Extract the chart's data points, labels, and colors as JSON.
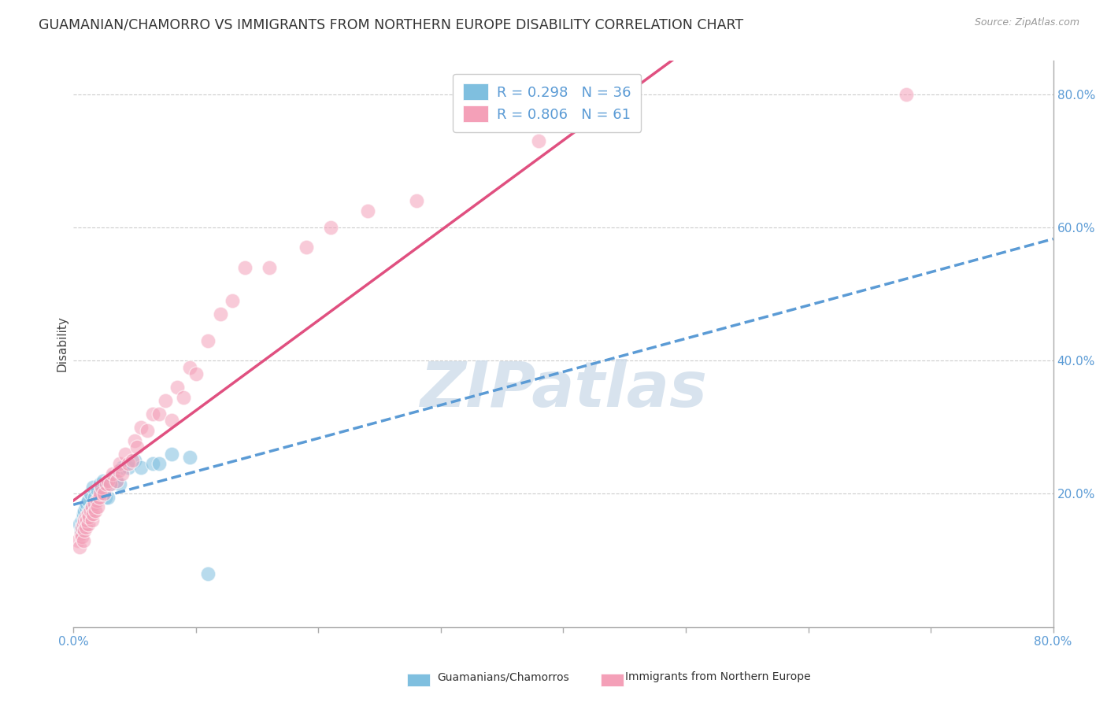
{
  "title": "GUAMANIAN/CHAMORRO VS IMMIGRANTS FROM NORTHERN EUROPE DISABILITY CORRELATION CHART",
  "source": "Source: ZipAtlas.com",
  "ylabel": "Disability",
  "ylabel_right_ticks": [
    "80.0%",
    "60.0%",
    "40.0%",
    "20.0%"
  ],
  "ylabel_right_values": [
    0.8,
    0.6,
    0.4,
    0.2
  ],
  "xlim": [
    0.0,
    0.8
  ],
  "ylim": [
    0.0,
    0.85
  ],
  "series1": {
    "label": "Guamanians/Chamorros",
    "color": "#7fbfdf",
    "R": 0.298,
    "N": 36,
    "x": [
      0.005,
      0.006,
      0.007,
      0.008,
      0.008,
      0.009,
      0.01,
      0.01,
      0.011,
      0.012,
      0.012,
      0.013,
      0.014,
      0.015,
      0.016,
      0.017,
      0.018,
      0.02,
      0.022,
      0.024,
      0.025,
      0.026,
      0.028,
      0.03,
      0.032,
      0.035,
      0.038,
      0.04,
      0.045,
      0.05,
      0.055,
      0.065,
      0.07,
      0.08,
      0.095,
      0.11
    ],
    "y": [
      0.155,
      0.145,
      0.16,
      0.165,
      0.17,
      0.175,
      0.155,
      0.18,
      0.185,
      0.165,
      0.19,
      0.175,
      0.2,
      0.18,
      0.21,
      0.195,
      0.185,
      0.205,
      0.215,
      0.22,
      0.2,
      0.195,
      0.195,
      0.215,
      0.225,
      0.22,
      0.215,
      0.24,
      0.24,
      0.25,
      0.24,
      0.245,
      0.245,
      0.26,
      0.255,
      0.08
    ]
  },
  "series2": {
    "label": "Immigrants from Northern Europe",
    "color": "#f4a0b8",
    "R": 0.806,
    "N": 61,
    "x": [
      0.004,
      0.005,
      0.006,
      0.007,
      0.007,
      0.008,
      0.008,
      0.009,
      0.009,
      0.01,
      0.01,
      0.011,
      0.012,
      0.012,
      0.013,
      0.014,
      0.015,
      0.015,
      0.016,
      0.017,
      0.018,
      0.019,
      0.02,
      0.021,
      0.022,
      0.023,
      0.025,
      0.027,
      0.028,
      0.03,
      0.032,
      0.035,
      0.037,
      0.038,
      0.04,
      0.042,
      0.045,
      0.048,
      0.05,
      0.052,
      0.055,
      0.06,
      0.065,
      0.07,
      0.075,
      0.08,
      0.085,
      0.09,
      0.095,
      0.1,
      0.11,
      0.12,
      0.13,
      0.14,
      0.16,
      0.19,
      0.21,
      0.24,
      0.28,
      0.38,
      0.68
    ],
    "y": [
      0.13,
      0.12,
      0.14,
      0.135,
      0.15,
      0.13,
      0.155,
      0.145,
      0.16,
      0.15,
      0.165,
      0.16,
      0.155,
      0.17,
      0.165,
      0.175,
      0.16,
      0.18,
      0.17,
      0.185,
      0.175,
      0.19,
      0.18,
      0.195,
      0.2,
      0.21,
      0.2,
      0.215,
      0.22,
      0.215,
      0.23,
      0.22,
      0.235,
      0.245,
      0.23,
      0.26,
      0.245,
      0.25,
      0.28,
      0.27,
      0.3,
      0.295,
      0.32,
      0.32,
      0.34,
      0.31,
      0.36,
      0.345,
      0.39,
      0.38,
      0.43,
      0.47,
      0.49,
      0.54,
      0.54,
      0.57,
      0.6,
      0.625,
      0.64,
      0.73,
      0.8
    ]
  },
  "legend": {
    "series1_label": "R = 0.298   N = 36",
    "series2_label": "R = 0.806   N = 61"
  },
  "line1_color": "#5b9bd5",
  "line2_color": "#e05080",
  "background_color": "#ffffff",
  "grid_color": "#cccccc",
  "title_fontsize": 12.5,
  "axis_label_fontsize": 11,
  "tick_fontsize": 11,
  "legend_fontsize": 13
}
